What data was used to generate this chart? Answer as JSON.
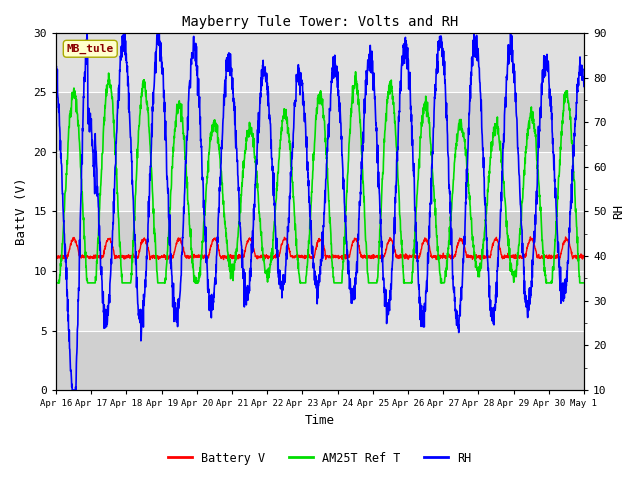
{
  "title": "Mayberry Tule Tower: Volts and RH",
  "xlabel": "Time",
  "ylabel_left": "BattV (V)",
  "ylabel_right": "RH",
  "station_label": "MB_tule",
  "xlim": [
    0,
    15
  ],
  "ylim_left": [
    0,
    30
  ],
  "ylim_right": [
    10,
    90
  ],
  "xtick_labels": [
    "Apr 16",
    "Apr 17",
    "Apr 18",
    "Apr 19",
    "Apr 20",
    "Apr 21",
    "Apr 22",
    "Apr 23",
    "Apr 24",
    "Apr 25",
    "Apr 26",
    "Apr 27",
    "Apr 28",
    "Apr 29",
    "Apr 30",
    "May 1"
  ],
  "bg_color": "#d8d8d8",
  "bg_color2": "#e8e8e8",
  "line_colors": {
    "battery": "#ff0000",
    "am25t": "#00dd00",
    "rh": "#0000ff"
  },
  "legend_items": [
    "Battery V",
    "AM25T Ref T",
    "RH"
  ],
  "font_family": "monospace"
}
